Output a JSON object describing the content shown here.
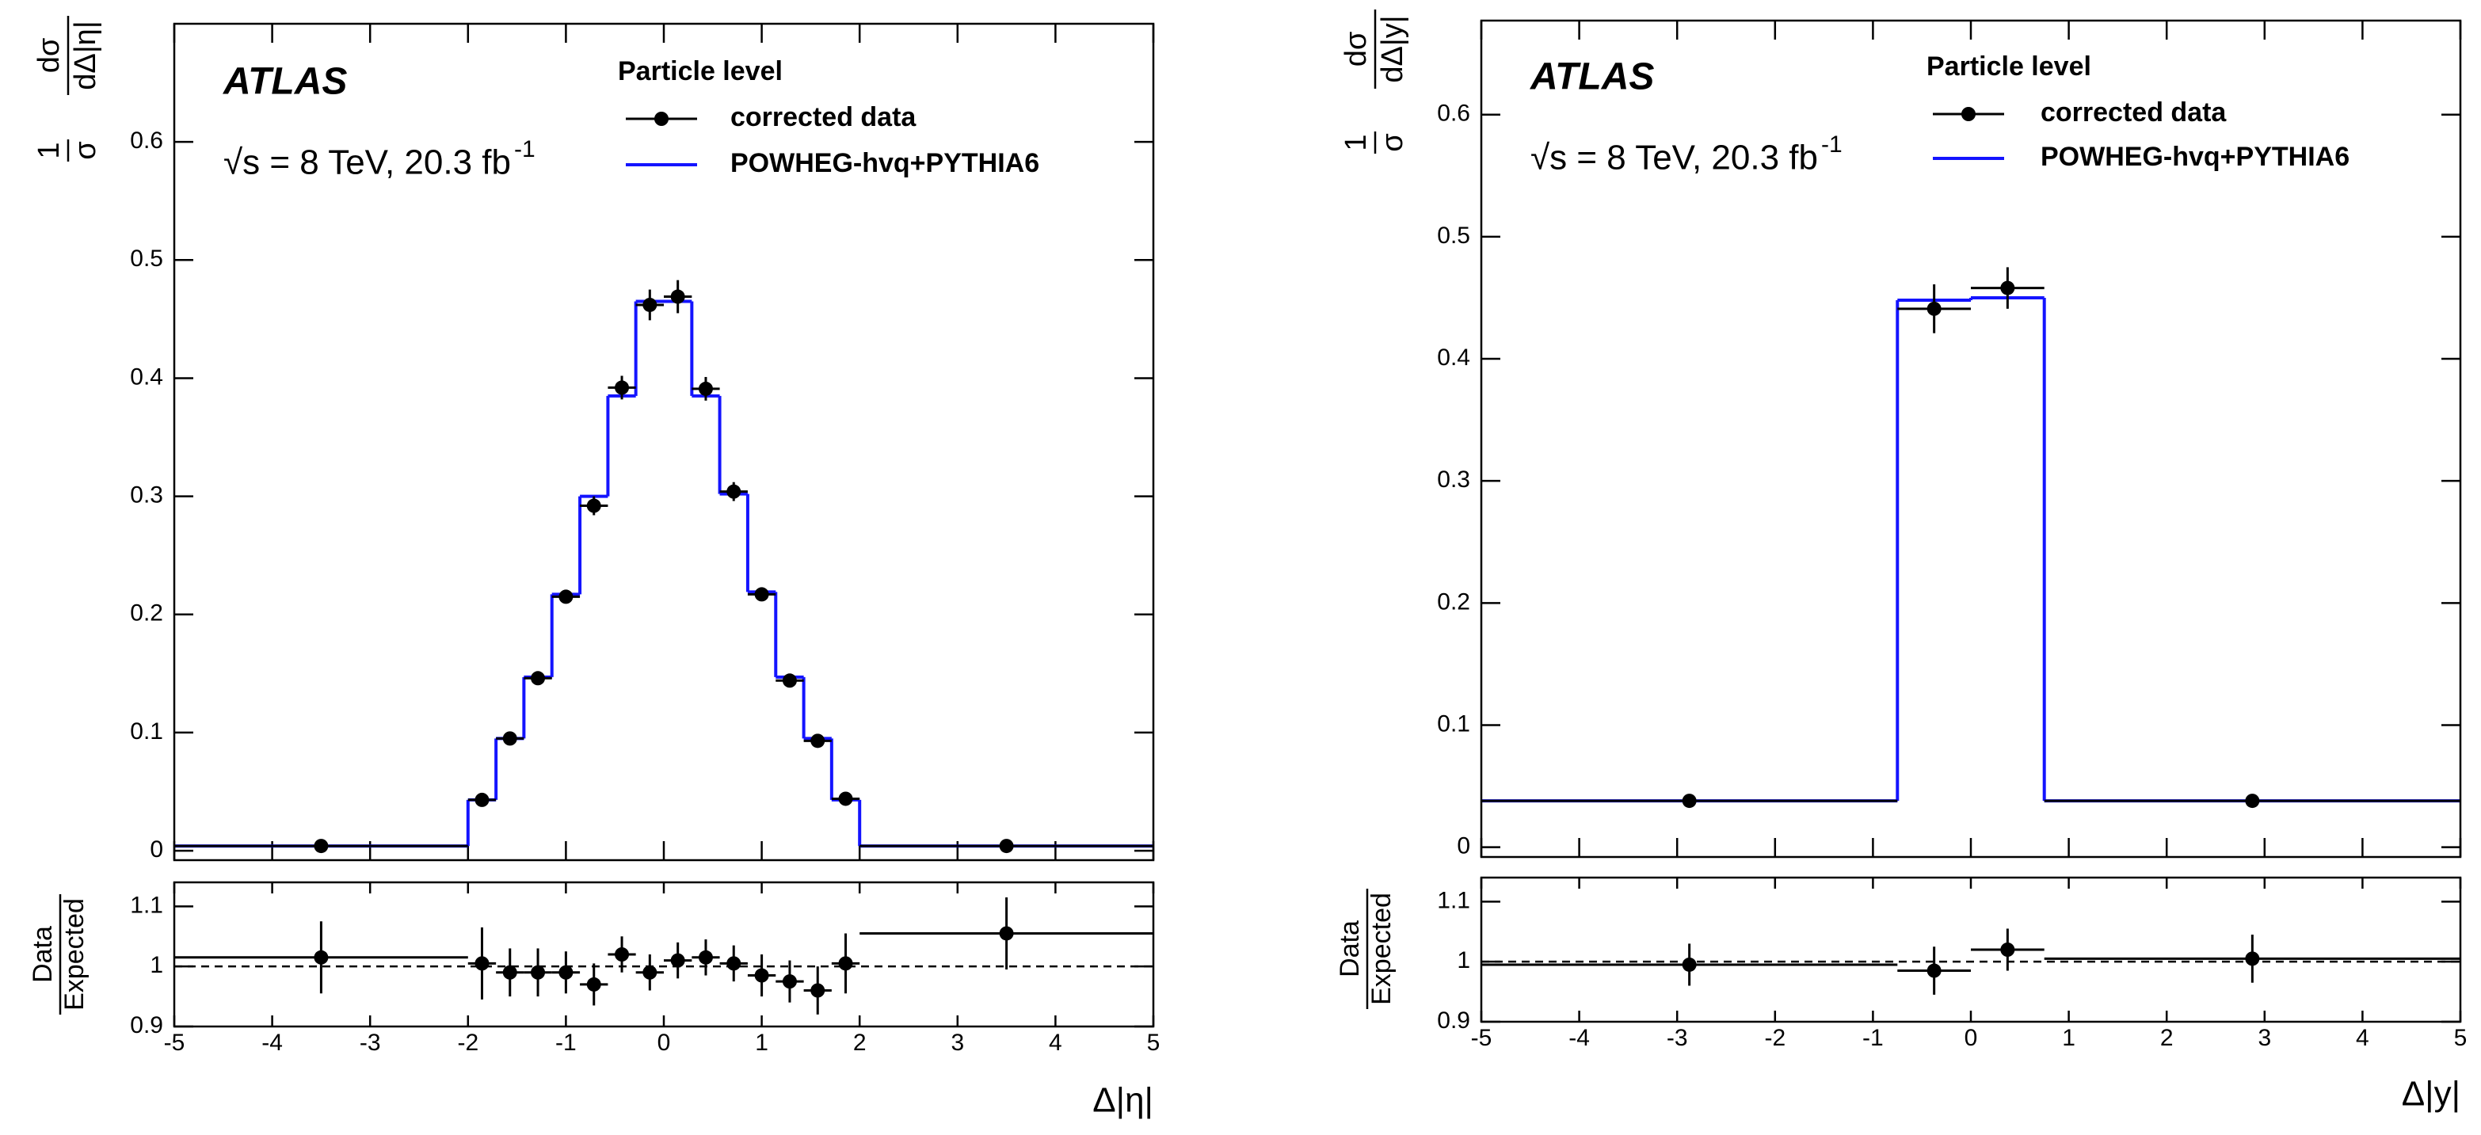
{
  "chart_data": [
    {
      "type": "histogram",
      "experiment": "ATLAS",
      "annotation": "√s = 8 TeV, 20.3 fb",
      "annotation_sup": "-1",
      "legend_title": "Particle level",
      "ylabel": {
        "factor": [
          "1",
          "σ"
        ],
        "fraction": [
          "dσ",
          "dΔ|η|"
        ]
      },
      "bins": [
        -5,
        -2,
        -1.714,
        -1.429,
        -1.143,
        -0.857,
        -0.571,
        -0.286,
        0,
        0.286,
        0.571,
        0.857,
        1.143,
        1.429,
        1.714,
        2,
        5
      ],
      "series": [
        {
          "name": "corrected data",
          "color": "#000000",
          "values": [
            0.004,
            0.043,
            0.095,
            0.146,
            0.215,
            0.292,
            0.392,
            0.462,
            0.469,
            0.391,
            0.304,
            0.217,
            0.144,
            0.093,
            0.044,
            0.004
          ],
          "errors": [
            0.001,
            0.003,
            0.004,
            0.004,
            0.005,
            0.008,
            0.01,
            0.013,
            0.014,
            0.01,
            0.008,
            0.005,
            0.004,
            0.004,
            0.003,
            0.001
          ]
        },
        {
          "name": "POWHEG-hvq+PYTHIA6",
          "color": "#1414ff",
          "values": [
            0.004,
            0.043,
            0.095,
            0.147,
            0.217,
            0.3,
            0.385,
            0.465,
            0.465,
            0.385,
            0.302,
            0.219,
            0.147,
            0.095,
            0.043,
            0.004
          ]
        }
      ],
      "xlim": [
        -5,
        5
      ],
      "xticks": [
        -5,
        -4,
        -3,
        -2,
        -1,
        0,
        1,
        2,
        3,
        4,
        5
      ],
      "ylim": [
        -0.008,
        0.7
      ],
      "yticks": [
        0,
        0.1,
        0.2,
        0.3,
        0.4,
        0.5,
        0.6
      ]
    },
    {
      "type": "histogram",
      "ylabel": [
        "Data",
        "Expected"
      ],
      "xlabel": "Δ|η|",
      "bins": [
        -5,
        -2,
        -1.714,
        -1.429,
        -1.143,
        -0.857,
        -0.571,
        -0.286,
        0,
        0.286,
        0.571,
        0.857,
        1.143,
        1.429,
        1.714,
        2,
        5
      ],
      "series": [
        {
          "color": "#000000",
          "values": [
            1.015,
            1.005,
            0.99,
            0.99,
            0.99,
            0.97,
            1.02,
            0.99,
            1.01,
            1.015,
            1.005,
            0.985,
            0.975,
            0.96,
            1.005,
            1.055
          ],
          "errors": [
            0.06,
            0.06,
            0.04,
            0.04,
            0.035,
            0.035,
            0.03,
            0.03,
            0.03,
            0.03,
            0.03,
            0.035,
            0.035,
            0.04,
            0.05,
            0.06
          ]
        }
      ],
      "reference_line": 1,
      "xlim": [
        -5,
        5
      ],
      "xticks": [
        -5,
        -4,
        -3,
        -2,
        -1,
        0,
        1,
        2,
        3,
        4,
        5
      ],
      "ylim": [
        0.9,
        1.14
      ],
      "yticks": [
        0.9,
        1,
        1.1
      ]
    },
    {
      "type": "histogram",
      "experiment": "ATLAS",
      "annotation": "√s = 8 TeV, 20.3 fb",
      "annotation_sup": "-1",
      "legend_title": "Particle level",
      "ylabel": {
        "factor": [
          "1",
          "σ"
        ],
        "fraction": [
          "dσ",
          "dΔ|y|"
        ]
      },
      "bins": [
        -5,
        -0.75,
        0,
        0.75,
        5
      ],
      "series": [
        {
          "name": "corrected data",
          "color": "#000000",
          "values": [
            0.038,
            0.441,
            0.458,
            0.038
          ],
          "errors": [
            0.002,
            0.02,
            0.017,
            0.002
          ]
        },
        {
          "name": "POWHEG-hvq+PYTHIA6",
          "color": "#1414ff",
          "values": [
            0.038,
            0.448,
            0.45,
            0.038
          ]
        }
      ],
      "xlim": [
        -5,
        5
      ],
      "xticks": [
        -5,
        -4,
        -3,
        -2,
        -1,
        0,
        1,
        2,
        3,
        4,
        5
      ],
      "ylim": [
        -0.008,
        0.677
      ],
      "yticks": [
        0,
        0.1,
        0.2,
        0.3,
        0.4,
        0.5,
        0.6
      ]
    },
    {
      "type": "histogram",
      "ylabel": [
        "Data",
        "Expected"
      ],
      "xlabel": "Δ|y|",
      "bins": [
        -5,
        -0.75,
        0,
        0.75,
        5
      ],
      "series": [
        {
          "color": "#000000",
          "values": [
            0.995,
            0.985,
            1.02,
            1.005
          ],
          "errors": [
            0.035,
            0.04,
            0.035,
            0.04
          ]
        }
      ],
      "reference_line": 1,
      "xlim": [
        -5,
        5
      ],
      "xticks": [
        -5,
        -4,
        -3,
        -2,
        -1,
        0,
        1,
        2,
        3,
        4,
        5
      ],
      "ylim": [
        0.9,
        1.14
      ],
      "yticks": [
        0.9,
        1,
        1.1
      ]
    }
  ]
}
